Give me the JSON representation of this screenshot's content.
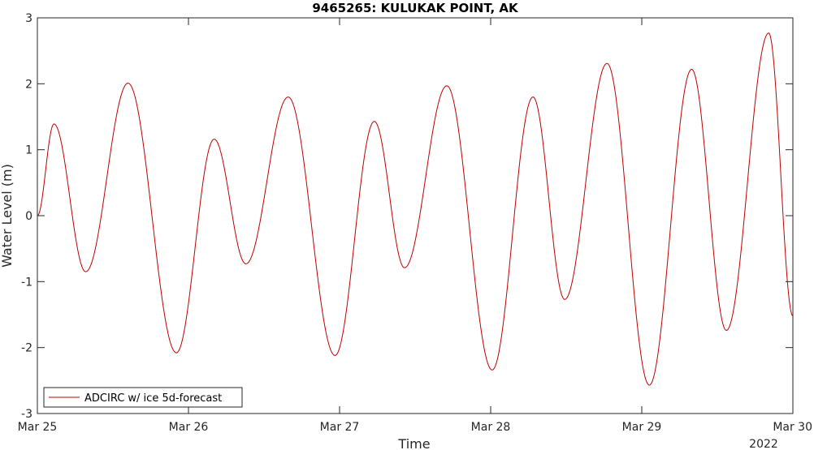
{
  "chart_data": {
    "type": "line",
    "title": "9465265: KULUKAK POINT, AK",
    "xlabel": "Time",
    "ylabel": "Water Level (m)",
    "x_year_label": "2022",
    "x_range_days": [
      0,
      5
    ],
    "x_ticks": [
      {
        "day": 0,
        "label": "Mar 25"
      },
      {
        "day": 1,
        "label": "Mar 26"
      },
      {
        "day": 2,
        "label": "Mar 27"
      },
      {
        "day": 3,
        "label": "Mar 28"
      },
      {
        "day": 4,
        "label": "Mar 29"
      },
      {
        "day": 5,
        "label": "Mar 30"
      }
    ],
    "ylim": [
      -3,
      3
    ],
    "y_ticks": [
      -3,
      -2,
      -1,
      0,
      1,
      2,
      3
    ],
    "grid": false,
    "legend": {
      "location": "bottom-left",
      "entries": [
        "ADCIRC w/ ice 5d-forecast"
      ]
    },
    "series": [
      {
        "name": "ADCIRC w/ ice 5d-forecast",
        "color": "#c00000",
        "extrema": [
          {
            "day": 0.0,
            "value": 0.0
          },
          {
            "day": 0.11,
            "value": 1.39
          },
          {
            "day": 0.32,
            "value": -0.85
          },
          {
            "day": 0.6,
            "value": 2.01
          },
          {
            "day": 0.92,
            "value": -2.08
          },
          {
            "day": 1.17,
            "value": 1.16
          },
          {
            "day": 1.38,
            "value": -0.73
          },
          {
            "day": 1.66,
            "value": 1.8
          },
          {
            "day": 1.97,
            "value": -2.12
          },
          {
            "day": 2.23,
            "value": 1.43
          },
          {
            "day": 2.43,
            "value": -0.79
          },
          {
            "day": 2.71,
            "value": 1.97
          },
          {
            "day": 3.01,
            "value": -2.34
          },
          {
            "day": 3.28,
            "value": 1.8
          },
          {
            "day": 3.49,
            "value": -1.27
          },
          {
            "day": 3.77,
            "value": 2.31
          },
          {
            "day": 4.05,
            "value": -2.57
          },
          {
            "day": 4.33,
            "value": 2.22
          },
          {
            "day": 4.56,
            "value": -1.74
          },
          {
            "day": 4.84,
            "value": 2.77
          },
          {
            "day": 5.0,
            "value": -1.52
          }
        ]
      }
    ]
  }
}
